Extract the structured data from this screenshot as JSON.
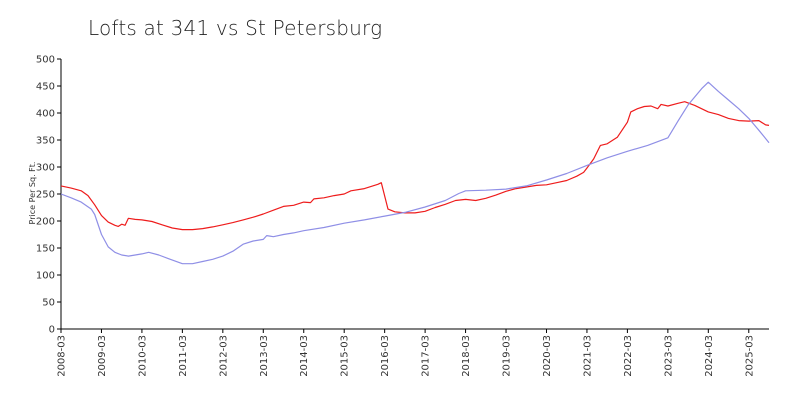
{
  "chart_data": {
    "type": "line",
    "title": "Lofts at 341 vs St Petersburg",
    "xlabel": "",
    "ylabel": "Price Per Sq. Ft.",
    "ylim": [
      0,
      500
    ],
    "yticks": [
      0,
      50,
      100,
      150,
      200,
      250,
      300,
      350,
      400,
      450,
      500
    ],
    "xlim": [
      "2008-03",
      "2025-09"
    ],
    "xticks": [
      "2008-03",
      "2009-03",
      "2010-03",
      "2011-03",
      "2012-03",
      "2013-03",
      "2014-03",
      "2015-03",
      "2016-03",
      "2017-03",
      "2018-03",
      "2019-03",
      "2020-03",
      "2021-03",
      "2022-03",
      "2023-03",
      "2024-03",
      "2025-03"
    ],
    "grid": false,
    "legend": "none",
    "series": [
      {
        "color": "#ee1c1c",
        "points": [
          [
            "2008-03",
            265
          ],
          [
            "2008-06",
            261
          ],
          [
            "2008-09",
            256
          ],
          [
            "2008-11",
            247
          ],
          [
            "2009-01",
            230
          ],
          [
            "2009-03",
            210
          ],
          [
            "2009-05",
            198
          ],
          [
            "2009-07",
            192
          ],
          [
            "2009-08",
            190
          ],
          [
            "2009-09",
            194
          ],
          [
            "2009-10",
            192
          ],
          [
            "2009-11",
            205
          ],
          [
            "2010-01",
            203
          ],
          [
            "2010-03",
            202
          ],
          [
            "2010-06",
            199
          ],
          [
            "2010-09",
            193
          ],
          [
            "2010-12",
            187
          ],
          [
            "2011-03",
            184
          ],
          [
            "2011-06",
            184
          ],
          [
            "2011-09",
            186
          ],
          [
            "2011-12",
            189
          ],
          [
            "2012-03",
            193
          ],
          [
            "2012-06",
            197
          ],
          [
            "2012-09",
            202
          ],
          [
            "2012-12",
            207
          ],
          [
            "2013-03",
            213
          ],
          [
            "2013-06",
            220
          ],
          [
            "2013-09",
            227
          ],
          [
            "2013-12",
            229
          ],
          [
            "2014-03",
            235
          ],
          [
            "2014-05",
            234
          ],
          [
            "2014-06",
            241
          ],
          [
            "2014-09",
            243
          ],
          [
            "2014-12",
            247
          ],
          [
            "2015-03",
            250
          ],
          [
            "2015-05",
            256
          ],
          [
            "2015-09",
            260
          ],
          [
            "2016-01",
            268
          ],
          [
            "2016-02",
            271
          ],
          [
            "2016-04",
            222
          ],
          [
            "2016-06",
            217
          ],
          [
            "2016-09",
            215
          ],
          [
            "2016-12",
            215
          ],
          [
            "2017-03",
            218
          ],
          [
            "2017-06",
            225
          ],
          [
            "2017-09",
            231
          ],
          [
            "2017-12",
            238
          ],
          [
            "2018-03",
            240
          ],
          [
            "2018-06",
            238
          ],
          [
            "2018-09",
            242
          ],
          [
            "2018-12",
            248
          ],
          [
            "2019-03",
            255
          ],
          [
            "2019-06",
            260
          ],
          [
            "2019-09",
            263
          ],
          [
            "2019-12",
            266
          ],
          [
            "2020-03",
            267
          ],
          [
            "2020-06",
            271
          ],
          [
            "2020-09",
            275
          ],
          [
            "2020-12",
            283
          ],
          [
            "2021-02",
            290
          ],
          [
            "2021-03",
            298
          ],
          [
            "2021-05",
            315
          ],
          [
            "2021-07",
            340
          ],
          [
            "2021-09",
            343
          ],
          [
            "2021-12",
            355
          ],
          [
            "2022-03",
            383
          ],
          [
            "2022-04",
            402
          ],
          [
            "2022-06",
            408
          ],
          [
            "2022-08",
            412
          ],
          [
            "2022-10",
            413
          ],
          [
            "2022-12",
            408
          ],
          [
            "2023-01",
            416
          ],
          [
            "2023-03",
            413
          ],
          [
            "2023-06",
            418
          ],
          [
            "2023-08",
            421
          ],
          [
            "2023-11",
            414
          ],
          [
            "2024-03",
            402
          ],
          [
            "2024-06",
            397
          ],
          [
            "2024-09",
            390
          ],
          [
            "2024-12",
            386
          ],
          [
            "2025-03",
            385
          ],
          [
            "2025-06",
            386
          ],
          [
            "2025-08",
            378
          ],
          [
            "2025-09",
            377
          ]
        ]
      },
      {
        "color": "#8f8fe6",
        "points": [
          [
            "2008-03",
            250
          ],
          [
            "2008-06",
            243
          ],
          [
            "2008-09",
            235
          ],
          [
            "2008-12",
            222
          ],
          [
            "2009-01",
            212
          ],
          [
            "2009-03",
            175
          ],
          [
            "2009-05",
            152
          ],
          [
            "2009-07",
            142
          ],
          [
            "2009-09",
            137
          ],
          [
            "2009-11",
            135
          ],
          [
            "2010-01",
            137
          ],
          [
            "2010-03",
            139
          ],
          [
            "2010-05",
            142
          ],
          [
            "2010-08",
            137
          ],
          [
            "2010-11",
            130
          ],
          [
            "2011-03",
            121
          ],
          [
            "2011-06",
            121
          ],
          [
            "2011-09",
            125
          ],
          [
            "2011-12",
            129
          ],
          [
            "2012-03",
            135
          ],
          [
            "2012-06",
            144
          ],
          [
            "2012-09",
            157
          ],
          [
            "2012-12",
            163
          ],
          [
            "2013-03",
            166
          ],
          [
            "2013-04",
            173
          ],
          [
            "2013-05",
            172
          ],
          [
            "2013-06",
            171
          ],
          [
            "2013-09",
            175
          ],
          [
            "2013-12",
            178
          ],
          [
            "2014-03",
            182
          ],
          [
            "2014-09",
            188
          ],
          [
            "2015-03",
            196
          ],
          [
            "2015-09",
            202
          ],
          [
            "2016-03",
            209
          ],
          [
            "2016-09",
            216
          ],
          [
            "2017-03",
            226
          ],
          [
            "2017-09",
            238
          ],
          [
            "2018-01",
            251
          ],
          [
            "2018-03",
            256
          ],
          [
            "2018-09",
            257
          ],
          [
            "2019-03",
            259
          ],
          [
            "2019-09",
            265
          ],
          [
            "2020-03",
            276
          ],
          [
            "2020-09",
            288
          ],
          [
            "2021-03",
            303
          ],
          [
            "2021-09",
            317
          ],
          [
            "2022-03",
            329
          ],
          [
            "2022-09",
            340
          ],
          [
            "2023-03",
            354
          ],
          [
            "2023-06",
            385
          ],
          [
            "2023-09",
            415
          ],
          [
            "2024-01",
            445
          ],
          [
            "2024-03",
            457
          ],
          [
            "2024-06",
            440
          ],
          [
            "2024-09",
            424
          ],
          [
            "2024-12",
            408
          ],
          [
            "2025-03",
            390
          ],
          [
            "2025-06",
            368
          ],
          [
            "2025-09",
            345
          ]
        ]
      }
    ]
  }
}
